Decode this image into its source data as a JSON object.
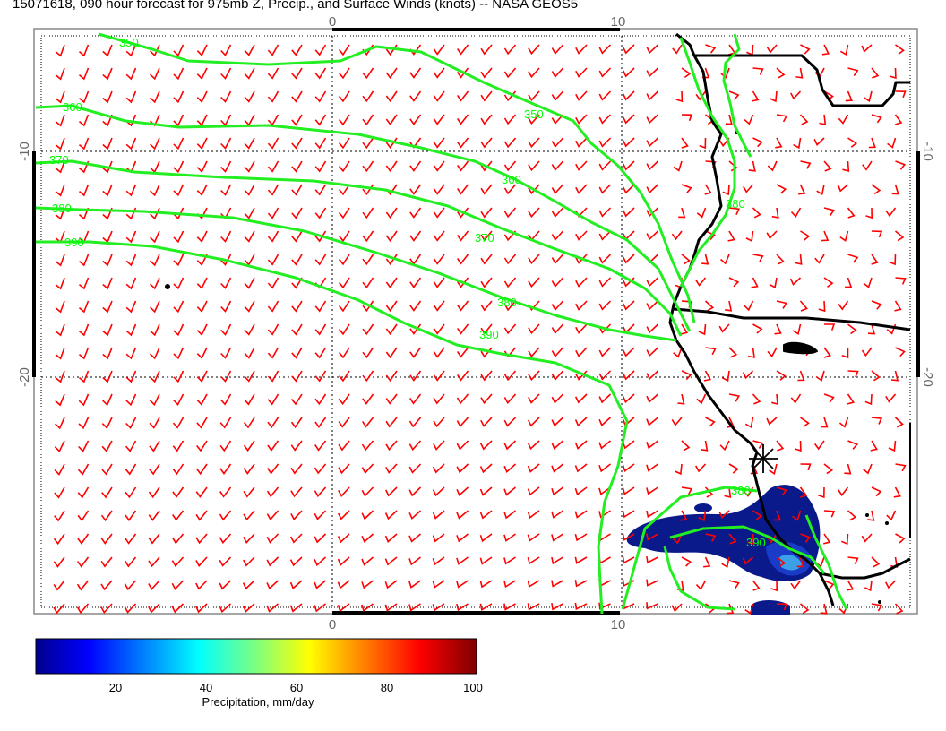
{
  "title": "15071618, 090 hour forecast for 975mb Z, Precip., and Surface Winds (knots) -- NASA GEOS5",
  "map": {
    "lon_ticks": [
      "0",
      "10"
    ],
    "lat_ticks": [
      "-10",
      "-20"
    ],
    "contour_labels": [
      "350",
      "350",
      "360",
      "360",
      "370",
      "370",
      "380",
      "380",
      "390",
      "390",
      "380",
      "390",
      "380"
    ],
    "colors": {
      "contour": "#22ee22",
      "barb": "#ff0000",
      "coast": "#000000",
      "precip": "#0a1a8a"
    }
  },
  "colorbar": {
    "label": "Precipitation, mm/day",
    "ticks": [
      "20",
      "40",
      "60",
      "80",
      "100"
    ],
    "range": [
      0,
      100
    ]
  }
}
